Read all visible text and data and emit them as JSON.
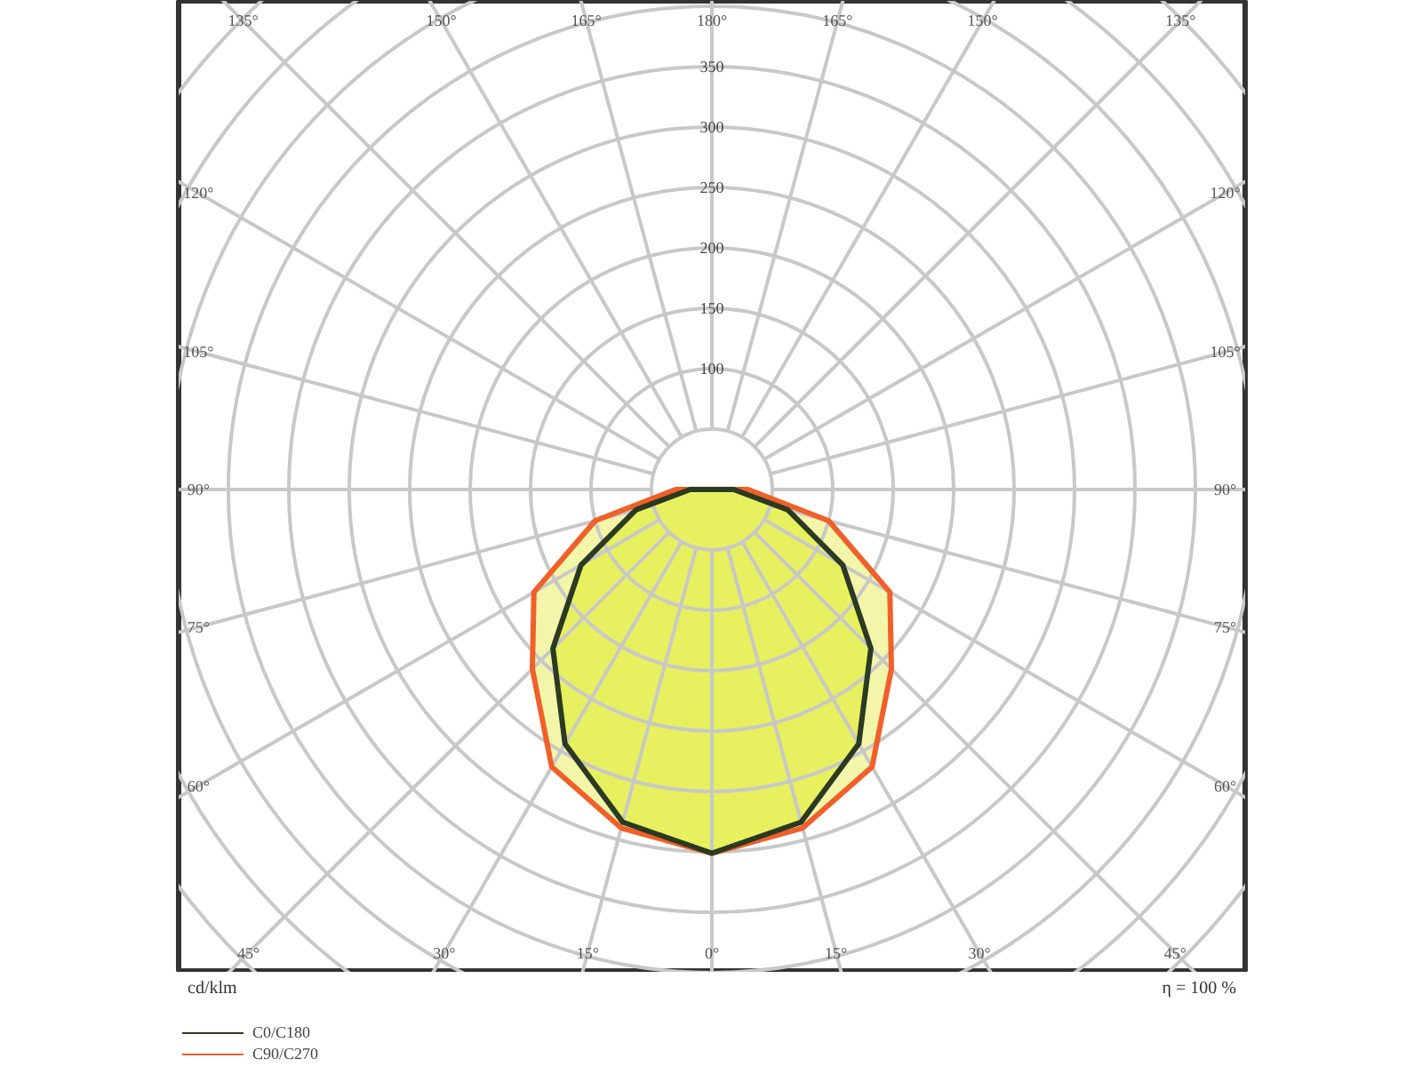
{
  "chart_data": {
    "type": "radar",
    "ylabel": "cd/klm",
    "annotations": [
      "η = 100 %"
    ],
    "categories": [
      "180°",
      "165°",
      "150°",
      "135°",
      "120°",
      "105°",
      "90°",
      "75°",
      "60°",
      "45°",
      "30°",
      "15°",
      "0°",
      "15°",
      "30°",
      "45°",
      "60°",
      "75°",
      "90°",
      "105°",
      "120°",
      "135°",
      "150°",
      "165°"
    ],
    "ylim": [
      0,
      550
    ],
    "yticks": [
      100,
      150,
      200,
      250,
      300,
      350
    ],
    "grid": true,
    "legend": "bottom left",
    "marker": "none",
    "line_style": "solid",
    "series": [
      {
        "name": "C0/C180",
        "color": "#2b3a20",
        "values": [
          0,
          0,
          0,
          0,
          0,
          0,
          18,
          65,
          125,
          186,
          243,
          285,
          301,
          285,
          243,
          186,
          125,
          65,
          18,
          0,
          0,
          0,
          0,
          0
        ]
      },
      {
        "name": "C90/C270",
        "color": "#f0602a",
        "values": [
          0,
          0,
          0,
          0,
          0,
          0,
          30,
          100,
          170,
          210,
          265,
          290,
          301,
          290,
          265,
          210,
          170,
          100,
          30,
          0,
          0,
          0,
          0,
          0
        ]
      }
    ]
  }
}
